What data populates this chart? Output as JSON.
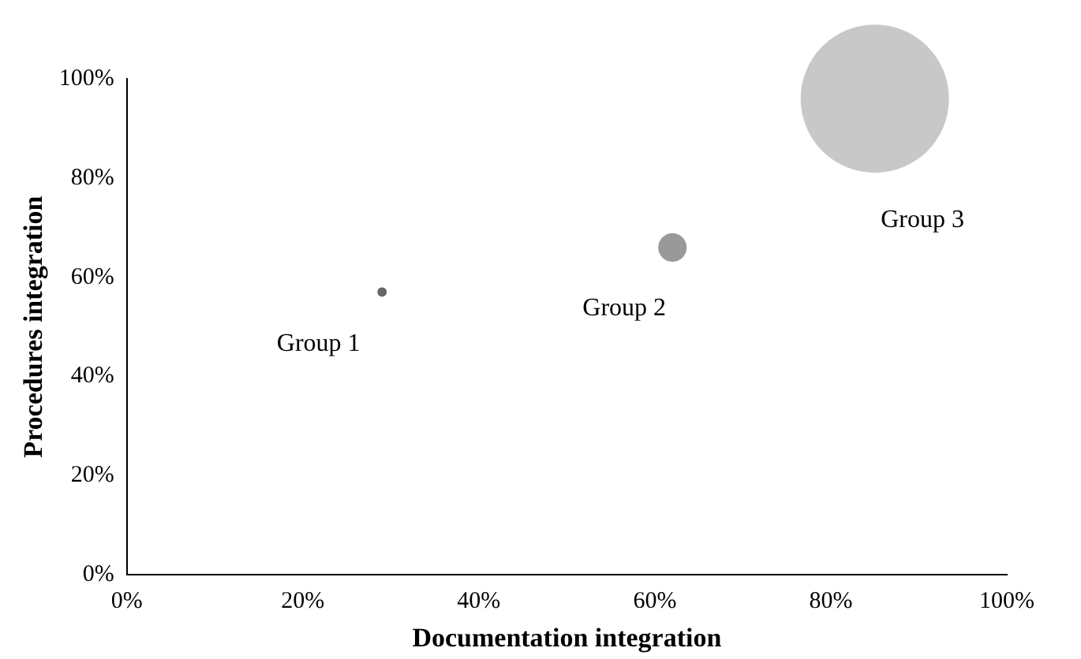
{
  "chart_data": {
    "type": "bubble",
    "xlabel": "Documentation integration",
    "ylabel": "Procedures integration",
    "xlim": [
      0,
      100
    ],
    "ylim": [
      0,
      100
    ],
    "xticks": [
      {
        "value": 0,
        "label": "0%"
      },
      {
        "value": 20,
        "label": "20%"
      },
      {
        "value": 40,
        "label": "40%"
      },
      {
        "value": 60,
        "label": "60%"
      },
      {
        "value": 80,
        "label": "80%"
      },
      {
        "value": 100,
        "label": "100%"
      }
    ],
    "yticks": [
      {
        "value": 0,
        "label": "0%"
      },
      {
        "value": 20,
        "label": "20%"
      },
      {
        "value": 40,
        "label": "40%"
      },
      {
        "value": 60,
        "label": "60%"
      },
      {
        "value": 80,
        "label": "80%"
      },
      {
        "value": 100,
        "label": "100%"
      }
    ],
    "grid": false,
    "legend": false,
    "series": [
      {
        "name": "Group 1",
        "color": "#666666",
        "x": [
          29
        ],
        "values": [
          57
        ],
        "sizes": [
          0.004
        ]
      },
      {
        "name": "Group 2",
        "color": "#999999",
        "x": [
          62
        ],
        "values": [
          66
        ],
        "sizes": [
          0.037
        ]
      },
      {
        "name": "Group 3",
        "color": "#c8c8c8",
        "x": [
          85
        ],
        "values": [
          96
        ],
        "sizes": [
          1
        ]
      }
    ]
  }
}
